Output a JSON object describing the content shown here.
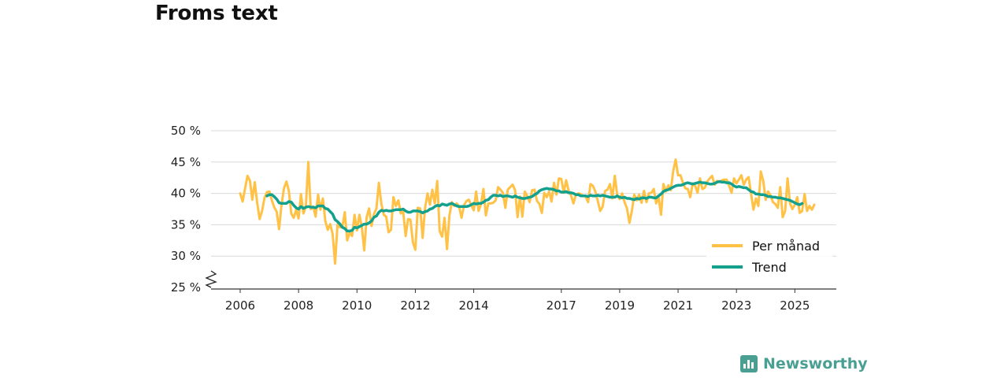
{
  "title": "Froms text",
  "subtitle": "",
  "brand": {
    "name": "Newsworthy",
    "color": "#4a9f93",
    "icon": "bar-chart-icon"
  },
  "chart_data": {
    "type": "line",
    "title": "Froms text",
    "ylim": [
      25,
      50
    ],
    "y_ticks": [
      25,
      30,
      35,
      40,
      45,
      50
    ],
    "y_tick_labels": [
      "25 %",
      "30 %",
      "35 %",
      "40 %",
      "45 %",
      "50 %"
    ],
    "x_ticks": [
      2006,
      2008,
      2010,
      2012,
      2014,
      2017,
      2019,
      2021,
      2023,
      2025
    ],
    "x_tick_labels": [
      "2006",
      "2008",
      "2010",
      "2012",
      "2014",
      "2017",
      "2019",
      "2021",
      "2023",
      "2025"
    ],
    "x_start": "2006-01",
    "axis_break": true,
    "grid": true,
    "legend_position": "bottom-right",
    "series": [
      {
        "name": "Per månad",
        "color": "#ffc247",
        "values": [
          40.0,
          38.7,
          40.8,
          42.8,
          42.0,
          39.0,
          41.8,
          38.5,
          35.9,
          37.2,
          39.3,
          40.2,
          40.3,
          38.9,
          37.8,
          37.1,
          34.3,
          38.2,
          40.8,
          41.9,
          40.4,
          36.8,
          36.1,
          37.4,
          36.0,
          39.9,
          36.8,
          37.9,
          45.0,
          37.5,
          37.9,
          36.3,
          39.8,
          37.4,
          39.2,
          35.6,
          34.2,
          35.1,
          33.5,
          28.8,
          35.1,
          34.6,
          34.6,
          37.0,
          32.5,
          33.7,
          33.2,
          36.6,
          34.1,
          36.6,
          34.6,
          30.9,
          36.2,
          37.6,
          34.8,
          36.7,
          37.6,
          41.7,
          38.4,
          36.6,
          36.3,
          33.8,
          34.2,
          39.4,
          38.0,
          38.9,
          36.8,
          37.1,
          33.2,
          35.9,
          35.8,
          32.2,
          31.0,
          37.7,
          37.6,
          32.9,
          37.7,
          40.0,
          38.2,
          40.6,
          38.4,
          42.0,
          34.0,
          33.1,
          36.1,
          31.1,
          36.5,
          38.6,
          38.0,
          38.4,
          37.9,
          36.1,
          38.1,
          38.8,
          39.0,
          38.1,
          37.3,
          40.3,
          37.2,
          38.3,
          40.7,
          36.5,
          38.4,
          38.4,
          38.5,
          38.9,
          41.0,
          40.6,
          40.1,
          37.7,
          40.6,
          41.0,
          41.4,
          40.5,
          36.2,
          39.5,
          36.3,
          40.3,
          39.6,
          38.6,
          40.5,
          40.6,
          38.8,
          38.3,
          36.9,
          40.1,
          39.4,
          40.3,
          38.7,
          41.7,
          39.8,
          42.4,
          42.3,
          40.1,
          42.1,
          40.5,
          39.7,
          38.4,
          39.8,
          40.0,
          39.9,
          39.6,
          39.5,
          38.6,
          41.5,
          41.2,
          40.3,
          38.8,
          37.2,
          37.9,
          40.4,
          40.6,
          41.5,
          39.2,
          42.8,
          39.7,
          39.1,
          40.0,
          38.6,
          37.6,
          35.3,
          37.2,
          39.8,
          38.9,
          39.8,
          38.5,
          40.4,
          38.6,
          40.0,
          40.1,
          40.7,
          38.4,
          39.4,
          36.6,
          41.5,
          40.3,
          41.3,
          40.5,
          43.6,
          45.4,
          42.9,
          42.9,
          41.7,
          40.8,
          40.7,
          39.4,
          41.6,
          41.2,
          40.1,
          42.4,
          40.7,
          40.9,
          41.9,
          42.4,
          42.8,
          41.4,
          42.0,
          41.8,
          42.1,
          42.2,
          42.2,
          41.2,
          40.1,
          42.4,
          41.6,
          42.2,
          42.9,
          41.4,
          42.2,
          42.6,
          40.0,
          37.4,
          39.2,
          38.0,
          43.5,
          42.0,
          39.0,
          40.3,
          39.7,
          38.6,
          38.3,
          37.7,
          41.0,
          36.2,
          37.2,
          42.4,
          38.4,
          37.5,
          38.2,
          39.4,
          36.9,
          37.2,
          39.9,
          37.2,
          38.0,
          37.4,
          38.2
        ]
      },
      {
        "name": "Trend",
        "color": "#13a08c",
        "values": [
          null,
          null,
          null,
          null,
          null,
          null,
          null,
          null,
          null,
          null,
          null,
          39.6,
          39.8,
          39.8,
          39.5,
          39.1,
          38.5,
          38.4,
          38.4,
          38.4,
          38.7,
          38.6,
          38.1,
          37.7,
          37.5,
          37.9,
          37.6,
          37.8,
          37.9,
          37.8,
          37.8,
          37.7,
          38.0,
          38.0,
          38.0,
          37.6,
          37.5,
          37.1,
          36.7,
          35.8,
          35.5,
          35.1,
          34.6,
          34.4,
          34.0,
          34.0,
          34.1,
          34.6,
          34.5,
          34.7,
          34.9,
          35.1,
          35.1,
          35.3,
          35.6,
          36.2,
          36.4,
          37.0,
          37.3,
          37.2,
          37.3,
          37.2,
          37.2,
          37.3,
          37.4,
          37.4,
          37.4,
          37.5,
          37.2,
          37.0,
          37.0,
          37.2,
          37.2,
          37.2,
          37.1,
          36.9,
          37.1,
          37.2,
          37.5,
          37.6,
          37.9,
          38.1,
          38.0,
          38.3,
          38.2,
          38.1,
          38.3,
          38.4,
          38.2,
          38.0,
          37.9,
          37.9,
          37.9,
          37.9,
          38.0,
          38.2,
          38.4,
          38.3,
          38.4,
          38.4,
          38.6,
          38.9,
          39.0,
          39.4,
          39.7,
          39.7,
          39.6,
          39.7,
          39.5,
          39.6,
          39.6,
          39.5,
          39.4,
          39.6,
          39.4,
          39.3,
          39.2,
          39.2,
          39.3,
          39.4,
          39.5,
          39.8,
          40.0,
          40.4,
          40.6,
          40.7,
          40.8,
          40.7,
          40.7,
          40.6,
          40.4,
          40.4,
          40.2,
          40.2,
          40.3,
          40.1,
          40.1,
          40.0,
          39.8,
          39.8,
          39.6,
          39.6,
          39.6,
          39.5,
          39.7,
          39.6,
          39.6,
          39.7,
          39.6,
          39.7,
          39.6,
          39.5,
          39.4,
          39.4,
          39.4,
          39.6,
          39.4,
          39.3,
          39.4,
          39.2,
          39.2,
          39.1,
          39.0,
          39.2,
          39.1,
          39.3,
          39.3,
          39.2,
          39.4,
          39.4,
          39.3,
          39.3,
          39.6,
          39.9,
          40.3,
          40.5,
          40.6,
          40.8,
          41.0,
          41.2,
          41.3,
          41.3,
          41.4,
          41.6,
          41.7,
          41.6,
          41.5,
          41.6,
          41.7,
          41.8,
          41.7,
          41.7,
          41.6,
          41.5,
          41.5,
          41.6,
          41.8,
          41.9,
          41.8,
          41.8,
          41.7,
          41.7,
          41.5,
          41.2,
          41.0,
          41.1,
          41.0,
          40.9,
          40.9,
          40.6,
          40.3,
          40.2,
          39.9,
          39.9,
          39.8,
          39.8,
          39.7,
          39.5,
          39.5,
          39.4,
          39.4,
          39.3,
          39.3,
          39.2,
          39.1,
          39.0,
          38.9,
          38.7,
          38.5,
          38.3,
          38.2,
          38.4
        ]
      }
    ]
  }
}
